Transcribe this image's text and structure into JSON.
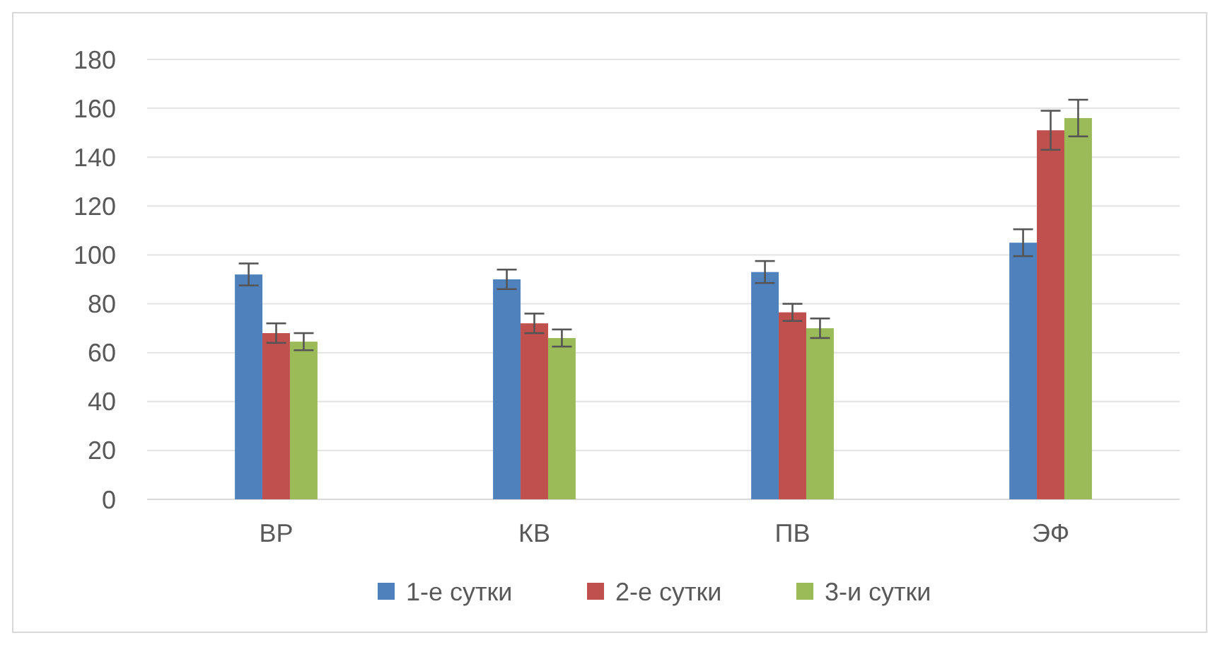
{
  "chart_data": {
    "type": "bar",
    "categories": [
      "ВР",
      "КВ",
      "ПВ",
      "ЭФ"
    ],
    "series": [
      {
        "name": "1-е сутки",
        "color": "#4f81bd",
        "values": [
          92,
          90,
          93,
          105
        ],
        "errors": [
          4.5,
          4,
          4.5,
          5.5
        ]
      },
      {
        "name": "2-е сутки",
        "color": "#c0504d",
        "values": [
          68,
          72,
          76.5,
          151
        ],
        "errors": [
          4,
          4,
          3.5,
          8
        ]
      },
      {
        "name": "3-и сутки",
        "color": "#9bbb59",
        "values": [
          64.5,
          66,
          70,
          156
        ],
        "errors": [
          3.5,
          3.5,
          4,
          7.5
        ]
      }
    ],
    "ylim": [
      0,
      180
    ],
    "yticks": [
      0,
      20,
      40,
      60,
      80,
      100,
      120,
      140,
      160,
      180
    ],
    "grid": "y",
    "legend": "bottom"
  }
}
